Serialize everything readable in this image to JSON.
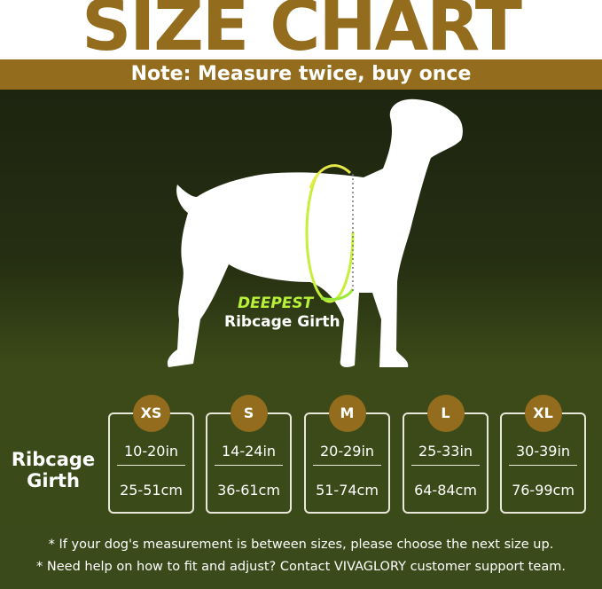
{
  "colors": {
    "gold": "#936d1d",
    "accent_green": "#b8f03a"
  },
  "header": {
    "title": "SIZE CHART",
    "note": "Note: Measure twice, buy once"
  },
  "illustration": {
    "highlight": "DEEPEST",
    "label": "Ribcage Girth"
  },
  "table": {
    "row_label": [
      "Ribcage",
      "Girth"
    ],
    "sizes": [
      {
        "size": "XS",
        "inches": "10-20in",
        "cm": "25-51cm"
      },
      {
        "size": "S",
        "inches": "14-24in",
        "cm": "36-61cm"
      },
      {
        "size": "M",
        "inches": "20-29in",
        "cm": "51-74cm"
      },
      {
        "size": "L",
        "inches": "25-33in",
        "cm": "64-84cm"
      },
      {
        "size": "XL",
        "inches": "30-39in",
        "cm": "76-99cm"
      }
    ]
  },
  "notes": [
    "*   If your dog's measurement is between sizes, please choose the next size up.",
    "* Need help on how to fit and adjust? Contact VIVAGLORY customer support team."
  ]
}
